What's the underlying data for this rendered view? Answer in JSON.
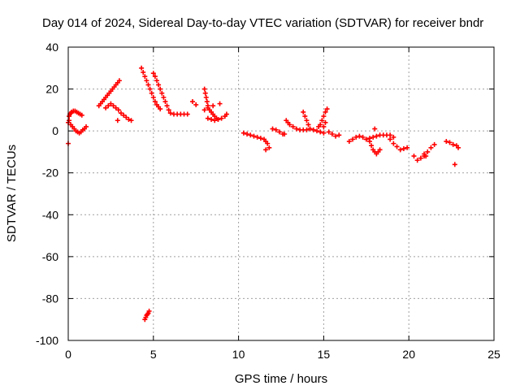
{
  "chart_data": {
    "type": "scatter",
    "title": "Day 014 of 2024, Sidereal Day-to-day VTEC variation (SDTVAR) for receiver bndr",
    "xlabel": "GPS time / hours",
    "ylabel": "SDTVAR / TECUs",
    "xlim": [
      0,
      25
    ],
    "ylim": [
      -100,
      40
    ],
    "xticks": [
      "0",
      "5",
      "10",
      "15",
      "20",
      "25"
    ],
    "yticks": [
      "40",
      "20",
      "0",
      "-20",
      "-40",
      "-60",
      "-80",
      "-100"
    ],
    "grid": true,
    "marker_color": "#ff0000",
    "marker": "plus",
    "series": [
      {
        "x": [
          0.0,
          0.05,
          0.1,
          0.15,
          0.2,
          0.3,
          0.4,
          0.5,
          0.6,
          0.7,
          0.8,
          0.15,
          0.25,
          0.35,
          0.45,
          0.55,
          0.65,
          0.75,
          0.85,
          0.95,
          1.05,
          0.0,
          0.05,
          1.8,
          1.9,
          2.0,
          2.1,
          2.2,
          2.3,
          2.4,
          2.5,
          2.6,
          2.7,
          2.8,
          2.9,
          3.0,
          2.2,
          2.35,
          2.5,
          2.65,
          2.8,
          2.95,
          3.1,
          3.25,
          3.4,
          3.55,
          3.7,
          2.9,
          4.3,
          4.4,
          4.5,
          4.6,
          4.7,
          4.8,
          4.9,
          5.0,
          5.1,
          5.2,
          5.3,
          5.4,
          5.0,
          5.1,
          5.2,
          5.3,
          5.4,
          5.5,
          5.6,
          5.7,
          5.8,
          5.9,
          6.0,
          6.2,
          6.4,
          6.6,
          6.8,
          7.0,
          7.3,
          7.5,
          8.0,
          8.05,
          8.1,
          8.15,
          8.2,
          8.3,
          8.4,
          8.5,
          8.6,
          8.7,
          8.8,
          8.2,
          8.4,
          8.6,
          8.8,
          9.0,
          9.2,
          9.3,
          8.0,
          8.2,
          8.5,
          8.9,
          4.5,
          4.55,
          4.6,
          4.65,
          4.7,
          4.75,
          10.3,
          10.5,
          10.7,
          10.9,
          11.1,
          11.3,
          11.5,
          11.6,
          11.7,
          11.8,
          11.6,
          12.0,
          12.2,
          12.4,
          12.6,
          12.7,
          12.8,
          12.9,
          13.0,
          13.2,
          13.4,
          13.6,
          13.8,
          14.0,
          14.2,
          13.8,
          13.9,
          14.0,
          14.1,
          14.2,
          14.4,
          14.6,
          14.8,
          15.0,
          14.7,
          14.8,
          14.9,
          15.0,
          15.1,
          15.2,
          15.1,
          15.0,
          15.3,
          15.5,
          15.7,
          15.9,
          16.5,
          16.7,
          16.9,
          17.1,
          17.3,
          17.5,
          17.7,
          17.8,
          17.9,
          18.0,
          18.1,
          18.2,
          18.3,
          17.5,
          17.7,
          17.9,
          18.1,
          18.3,
          18.5,
          18.7,
          18.9,
          19.1,
          18.0,
          18.9,
          19.1,
          19.3,
          19.5,
          19.7,
          19.9,
          20.3,
          20.5,
          20.7,
          20.9,
          21.1,
          21.3,
          21.5,
          20.9,
          21.0,
          22.2,
          22.4,
          22.6,
          22.8,
          22.9,
          22.7
        ],
        "y": [
          -6.0,
          7.0,
          8.0,
          8.5,
          9.0,
          9.5,
          9.5,
          9.0,
          8.5,
          8.0,
          7.5,
          3.0,
          2.0,
          1.0,
          0.0,
          -0.5,
          -1.0,
          -0.5,
          0.5,
          1.0,
          2.0,
          4.0,
          5.0,
          12.0,
          13.0,
          14.0,
          15.0,
          16.0,
          17.0,
          18.0,
          19.0,
          20.0,
          21.0,
          22.0,
          23.0,
          24.0,
          11.0,
          12.0,
          13.0,
          12.0,
          11.0,
          10.0,
          8.5,
          7.5,
          6.5,
          5.5,
          5.0,
          5.0,
          30.0,
          28.0,
          26.0,
          24.0,
          22.0,
          20.0,
          18.0,
          16.0,
          14.0,
          12.5,
          11.5,
          10.5,
          27.5,
          26.0,
          24.0,
          22.0,
          20.0,
          18.0,
          16.0,
          14.0,
          12.0,
          10.0,
          8.5,
          8.0,
          8.0,
          8.0,
          8.0,
          8.0,
          14.0,
          12.5,
          20.0,
          18.0,
          16.0,
          14.0,
          12.0,
          10.0,
          9.0,
          8.0,
          7.0,
          6.0,
          5.5,
          6.0,
          5.5,
          5.0,
          5.5,
          6.0,
          7.0,
          8.0,
          10.0,
          11.0,
          12.0,
          13.0,
          -90.0,
          -89.0,
          -88.0,
          -87.5,
          -87.0,
          -86.0,
          -1.0,
          -1.5,
          -2.0,
          -2.5,
          -3.0,
          -3.5,
          -4.0,
          -5.0,
          -6.0,
          -8.0,
          -9.0,
          1.0,
          0.5,
          -0.5,
          -1.5,
          -1.5,
          5.0,
          4.0,
          3.0,
          2.0,
          1.0,
          0.5,
          0.5,
          0.5,
          1.0,
          9.0,
          7.0,
          5.0,
          3.0,
          1.0,
          0.5,
          0.0,
          -0.5,
          -1.0,
          2.0,
          3.0,
          5.0,
          7.0,
          9.0,
          10.5,
          4.0,
          2.0,
          -0.5,
          -1.5,
          -2.5,
          -2.0,
          -5.0,
          -4.0,
          -3.0,
          -2.5,
          -3.0,
          -4.0,
          -5.0,
          -7.0,
          -9.0,
          -10.0,
          -11.0,
          -10.0,
          -9.0,
          -4.0,
          -3.5,
          -3.0,
          -2.5,
          -2.0,
          -2.0,
          -2.0,
          -2.0,
          -3.0,
          1.0,
          -4.0,
          -6.0,
          -7.5,
          -9.0,
          -8.5,
          -8.0,
          -12.0,
          -14.0,
          -13.0,
          -12.0,
          -10.0,
          -8.0,
          -6.5,
          -11.0,
          -12.0,
          -5.0,
          -5.5,
          -6.5,
          -7.0,
          -8.0,
          -16.0
        ]
      }
    ]
  }
}
